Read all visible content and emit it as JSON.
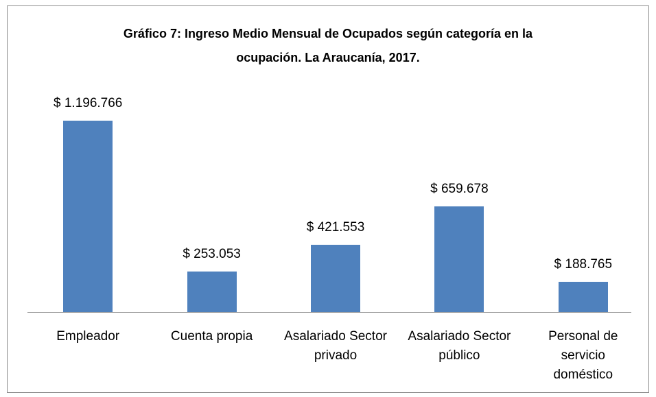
{
  "chart_data": {
    "type": "bar",
    "title": "Gráfico 7: Ingreso Medio Mensual de Ocupados según categoría en la ocupación. La Araucanía, 2017.",
    "categories": [
      "Empleador",
      "Cuenta propia",
      "Asalariado Sector privado",
      "Asalariado Sector público",
      "Personal de servicio doméstico"
    ],
    "values": [
      1196766,
      253053,
      421553,
      659678,
      188765
    ],
    "value_labels": [
      "$ 1.196.766",
      "$ 253.053",
      "$ 421.553",
      "$ 659.678",
      "$ 188.765"
    ],
    "color": "#4f81bd"
  }
}
